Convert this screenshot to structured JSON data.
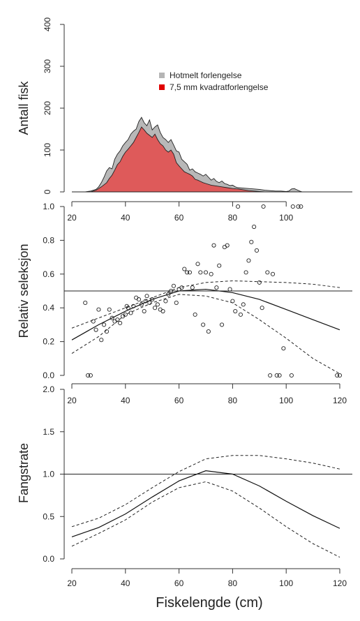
{
  "figure": {
    "xlabel": "Fiskelengde (cm)"
  },
  "chart_data": [
    {
      "type": "area",
      "ylabel": "Antall fisk",
      "ylim": [
        0,
        400
      ],
      "yticks": [
        0,
        100,
        200,
        300,
        400
      ],
      "xlim": [
        20,
        120
      ],
      "xticks": [
        20,
        40,
        60,
        80,
        100
      ],
      "legend": {
        "placement": "top-center",
        "entries": [
          {
            "label": "Hotmelt forlengelse",
            "color": "#b5b5b5"
          },
          {
            "label": "7,5 mm kvadratforlengelse",
            "color": "#e00000"
          }
        ]
      },
      "series": [
        {
          "name": "Hotmelt forlengelse",
          "color": "#b5b5b5",
          "x": [
            25,
            27,
            29,
            30,
            31,
            32,
            33,
            34,
            35,
            36,
            37,
            38,
            39,
            40,
            41,
            42,
            43,
            44,
            45,
            46,
            47,
            48,
            49,
            50,
            51,
            52,
            53,
            54,
            55,
            56,
            57,
            58,
            59,
            60,
            61,
            62,
            63,
            64,
            65,
            66,
            67,
            68,
            69,
            70,
            71,
            72,
            73,
            74,
            75,
            76,
            77,
            78,
            79,
            80,
            81,
            82,
            84,
            86,
            88,
            90,
            92,
            94,
            96,
            98,
            100,
            101,
            102,
            103,
            104,
            105,
            106
          ],
          "values": [
            0,
            2,
            6,
            12,
            22,
            35,
            50,
            58,
            55,
            78,
            90,
            98,
            110,
            118,
            125,
            138,
            145,
            150,
            168,
            178,
            165,
            158,
            172,
            148,
            155,
            160,
            142,
            130,
            125,
            118,
            125,
            112,
            98,
            95,
            78,
            72,
            66,
            52,
            55,
            48,
            45,
            42,
            38,
            42,
            35,
            28,
            32,
            25,
            22,
            26,
            20,
            18,
            15,
            16,
            12,
            10,
            9,
            8,
            7,
            6,
            4,
            3,
            2,
            2,
            1,
            2,
            7,
            8,
            5,
            2,
            0
          ]
        },
        {
          "name": "7,5 mm kvadratforlengelse",
          "color": "#e00000",
          "x": [
            27,
            29,
            31,
            33,
            34,
            35,
            36,
            37,
            38,
            39,
            40,
            41,
            42,
            43,
            44,
            45,
            46,
            47,
            48,
            49,
            50,
            51,
            52,
            53,
            54,
            55,
            56,
            57,
            58,
            59,
            60,
            61,
            62,
            63,
            64,
            65,
            66,
            67,
            68,
            69,
            70,
            72,
            74,
            76,
            78,
            80,
            82,
            84,
            86,
            88,
            90,
            92
          ],
          "values": [
            0,
            4,
            12,
            22,
            32,
            40,
            52,
            65,
            72,
            85,
            95,
            102,
            110,
            118,
            130,
            142,
            155,
            148,
            140,
            135,
            130,
            138,
            125,
            115,
            110,
            100,
            95,
            100,
            90,
            70,
            62,
            55,
            48,
            45,
            42,
            38,
            30,
            28,
            25,
            22,
            20,
            16,
            14,
            12,
            10,
            8,
            7,
            5,
            3,
            2,
            1,
            0
          ]
        }
      ]
    },
    {
      "type": "scatter",
      "ylabel": "Relativ seleksjon",
      "ylim": [
        0,
        1
      ],
      "yticks": [
        "0.0",
        "0.2",
        "0.4",
        "0.6",
        "0.8",
        "1.0"
      ],
      "xlim": [
        20,
        120
      ],
      "xticks": [
        20,
        40,
        60,
        80,
        100,
        120
      ],
      "reference_line": 0.5,
      "points": [
        [
          25,
          0.43
        ],
        [
          26,
          0.0
        ],
        [
          27,
          0.0
        ],
        [
          28,
          0.32
        ],
        [
          29,
          0.27
        ],
        [
          30,
          0.39
        ],
        [
          31,
          0.21
        ],
        [
          32,
          0.3
        ],
        [
          33,
          0.26
        ],
        [
          34,
          0.39
        ],
        [
          35,
          0.34
        ],
        [
          36,
          0.32
        ],
        [
          37,
          0.33
        ],
        [
          38,
          0.31
        ],
        [
          39,
          0.35
        ],
        [
          40,
          0.36
        ],
        [
          40.5,
          0.41
        ],
        [
          41,
          0.4
        ],
        [
          42,
          0.37
        ],
        [
          43,
          0.41
        ],
        [
          44,
          0.46
        ],
        [
          45,
          0.45
        ],
        [
          46,
          0.42
        ],
        [
          47,
          0.38
        ],
        [
          47.5,
          0.44
        ],
        [
          48,
          0.47
        ],
        [
          49,
          0.43
        ],
        [
          50,
          0.45
        ],
        [
          51,
          0.4
        ],
        [
          52,
          0.42
        ],
        [
          53,
          0.39
        ],
        [
          54,
          0.38
        ],
        [
          55,
          0.44
        ],
        [
          56,
          0.48
        ],
        [
          57,
          0.5
        ],
        [
          58,
          0.53
        ],
        [
          59,
          0.43
        ],
        [
          60,
          0.51
        ],
        [
          61,
          0.52
        ],
        [
          62,
          0.63
        ],
        [
          63,
          0.61
        ],
        [
          64,
          0.61
        ],
        [
          65,
          0.52
        ],
        [
          66,
          0.36
        ],
        [
          67,
          0.66
        ],
        [
          68,
          0.61
        ],
        [
          69,
          0.3
        ],
        [
          70,
          0.61
        ],
        [
          71,
          0.26
        ],
        [
          72,
          0.6
        ],
        [
          73,
          0.77
        ],
        [
          74,
          0.52
        ],
        [
          75,
          0.65
        ],
        [
          76,
          0.3
        ],
        [
          77,
          0.76
        ],
        [
          78,
          0.77
        ],
        [
          79,
          0.51
        ],
        [
          80,
          0.44
        ],
        [
          81,
          0.38
        ],
        [
          82,
          1.0
        ],
        [
          83,
          0.36
        ],
        [
          84,
          0.42
        ],
        [
          85,
          0.61
        ],
        [
          86,
          0.68
        ],
        [
          87,
          0.79
        ],
        [
          88,
          0.88
        ],
        [
          89,
          0.74
        ],
        [
          90,
          0.55
        ],
        [
          91,
          0.4
        ],
        [
          91.5,
          1.0
        ],
        [
          93,
          0.61
        ],
        [
          94,
          0.0
        ],
        [
          95,
          0.6
        ],
        [
          96.5,
          0.0
        ],
        [
          97.5,
          0.0
        ],
        [
          99,
          0.16
        ],
        [
          102,
          0.0
        ],
        [
          102.5,
          1.0
        ],
        [
          104.5,
          1.0
        ],
        [
          105.5,
          1.0
        ],
        [
          119,
          0.0
        ],
        [
          120,
          0.0
        ]
      ],
      "fit": {
        "x": [
          20,
          30,
          40,
          50,
          60,
          70,
          80,
          90,
          100,
          110,
          120
        ],
        "y": [
          0.21,
          0.3,
          0.38,
          0.45,
          0.5,
          0.51,
          0.49,
          0.45,
          0.39,
          0.33,
          0.27
        ]
      },
      "upper": {
        "x": [
          20,
          30,
          40,
          50,
          60,
          70,
          80,
          90,
          100,
          110,
          120
        ],
        "y": [
          0.28,
          0.34,
          0.4,
          0.46,
          0.52,
          0.55,
          0.56,
          0.555,
          0.55,
          0.54,
          0.52
        ]
      },
      "lower": {
        "x": [
          20,
          30,
          40,
          50,
          60,
          70,
          80,
          90,
          100,
          110,
          120
        ],
        "y": [
          0.13,
          0.23,
          0.36,
          0.43,
          0.48,
          0.47,
          0.43,
          0.33,
          0.22,
          0.1,
          0.01
        ]
      }
    },
    {
      "type": "line",
      "ylabel": "Fangstrate",
      "ylim": [
        0,
        2
      ],
      "yticks": [
        "0.0",
        "0.5",
        "1.0",
        "1.5",
        "2.0"
      ],
      "xlim": [
        20,
        120
      ],
      "xticks": [
        20,
        40,
        60,
        80,
        100,
        120
      ],
      "reference_line": 1.0,
      "fit": {
        "x": [
          20,
          30,
          40,
          50,
          60,
          70,
          80,
          90,
          100,
          110,
          120
        ],
        "y": [
          0.26,
          0.37,
          0.53,
          0.73,
          0.92,
          1.04,
          1.0,
          0.86,
          0.68,
          0.51,
          0.36
        ]
      },
      "upper": {
        "x": [
          20,
          30,
          40,
          50,
          60,
          70,
          80,
          90,
          100,
          110,
          120
        ],
        "y": [
          0.38,
          0.48,
          0.64,
          0.84,
          1.03,
          1.18,
          1.22,
          1.22,
          1.18,
          1.13,
          1.06
        ]
      },
      "lower": {
        "x": [
          20,
          30,
          40,
          50,
          60,
          70,
          80,
          90,
          100,
          110,
          120
        ],
        "y": [
          0.15,
          0.3,
          0.46,
          0.67,
          0.84,
          0.91,
          0.8,
          0.6,
          0.38,
          0.18,
          0.02
        ]
      }
    }
  ]
}
